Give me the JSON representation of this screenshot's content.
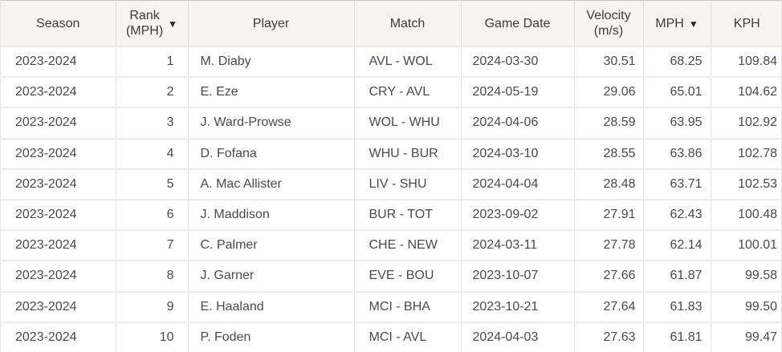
{
  "header": {
    "season": "Season",
    "rank": {
      "line1": "Rank",
      "line2": "(MPH)"
    },
    "player": "Player",
    "match": "Match",
    "game_date": "Game Date",
    "velocity": {
      "line1": "Velocity",
      "line2": "(m/s)"
    },
    "mph": "MPH",
    "kph": "KPH"
  },
  "icons": {
    "sort_desc": "▼"
  },
  "colors": {
    "header_bg": "#f8f5f1",
    "row_bg": "#ffffff",
    "grid_border": "#e4e3e1",
    "outer_top_border": "#c9c6c2",
    "header_text": "#3f3a34",
    "cell_text": "#4c4a48",
    "sort_icon": "#2b251d"
  },
  "rows": [
    {
      "season": "2023-2024",
      "rank": "1",
      "player": "M. Diaby",
      "match": "AVL - WOL",
      "game_date": "2024-03-30",
      "velocity": "30.51",
      "mph": "68.25",
      "kph": "109.84"
    },
    {
      "season": "2023-2024",
      "rank": "2",
      "player": "E. Eze",
      "match": "CRY - AVL",
      "game_date": "2024-05-19",
      "velocity": "29.06",
      "mph": "65.01",
      "kph": "104.62"
    },
    {
      "season": "2023-2024",
      "rank": "3",
      "player": "J. Ward-Prowse",
      "match": "WOL - WHU",
      "game_date": "2024-04-06",
      "velocity": "28.59",
      "mph": "63.95",
      "kph": "102.92"
    },
    {
      "season": "2023-2024",
      "rank": "4",
      "player": "D. Fofana",
      "match": "WHU - BUR",
      "game_date": "2024-03-10",
      "velocity": "28.55",
      "mph": "63.86",
      "kph": "102.78"
    },
    {
      "season": "2023-2024",
      "rank": "5",
      "player": "A. Mac Allister",
      "match": "LIV - SHU",
      "game_date": "2024-04-04",
      "velocity": "28.48",
      "mph": "63.71",
      "kph": "102.53"
    },
    {
      "season": "2023-2024",
      "rank": "6",
      "player": "J. Maddison",
      "match": "BUR - TOT",
      "game_date": "2023-09-02",
      "velocity": "27.91",
      "mph": "62.43",
      "kph": "100.48"
    },
    {
      "season": "2023-2024",
      "rank": "7",
      "player": "C. Palmer",
      "match": "CHE - NEW",
      "game_date": "2024-03-11",
      "velocity": "27.78",
      "mph": "62.14",
      "kph": "100.01"
    },
    {
      "season": "2023-2024",
      "rank": "8",
      "player": "J. Garner",
      "match": "EVE - BOU",
      "game_date": "2023-10-07",
      "velocity": "27.66",
      "mph": "61.87",
      "kph": "99.58"
    },
    {
      "season": "2023-2024",
      "rank": "9",
      "player": "E. Haaland",
      "match": "MCI - BHA",
      "game_date": "2023-10-21",
      "velocity": "27.64",
      "mph": "61.83",
      "kph": "99.50"
    },
    {
      "season": "2023-2024",
      "rank": "10",
      "player": "P. Foden",
      "match": "MCI - AVL",
      "game_date": "2024-04-03",
      "velocity": "27.63",
      "mph": "61.81",
      "kph": "99.47"
    }
  ]
}
